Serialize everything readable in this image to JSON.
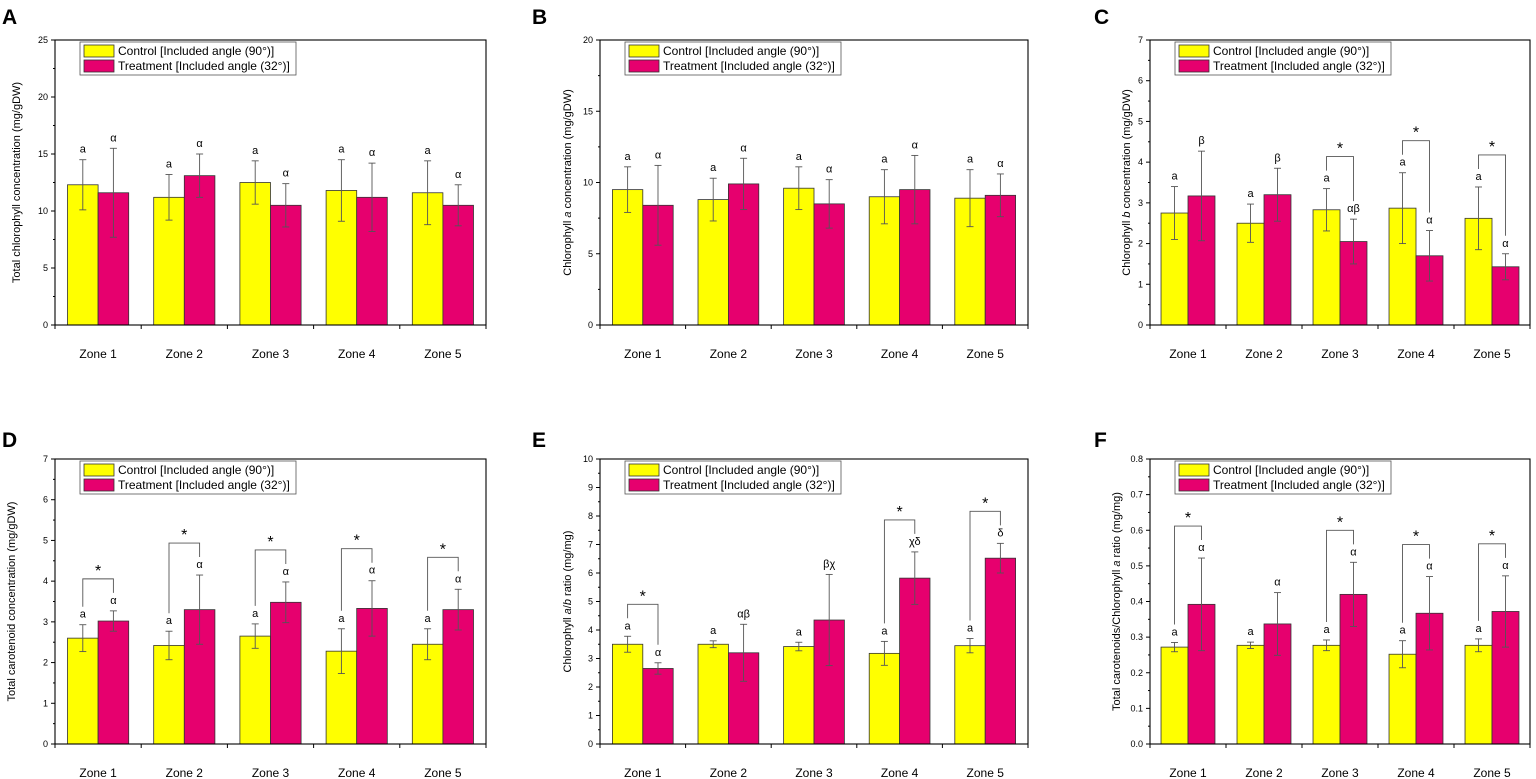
{
  "colors": {
    "control": "#ffff00",
    "treatment": "#e6006e",
    "axis": "#000000",
    "errorbar": "#555555"
  },
  "legend": {
    "control": "Control [Included angle (90°)]",
    "treatment": "Treatment [Included angle (32°)]"
  },
  "chart_data": [
    {
      "panel": "A",
      "type": "bar",
      "ylabel": "Total chlorophyll concentration (mg/gDW)",
      "categories": [
        "Zone 1",
        "Zone 2",
        "Zone 3",
        "Zone 4",
        "Zone 5"
      ],
      "ylim": [
        0,
        25
      ],
      "yticks": [
        "0",
        "5",
        "10",
        "15",
        "20",
        "25"
      ],
      "series": [
        {
          "name": "Control [Included angle (90°)]",
          "values": [
            12.3,
            11.2,
            12.5,
            11.8,
            11.6
          ],
          "errors": [
            2.2,
            2.0,
            1.9,
            2.7,
            2.8
          ],
          "labels": [
            "a",
            "a",
            "a",
            "a",
            "a"
          ]
        },
        {
          "name": "Treatment [Included angle (32°)]",
          "values": [
            11.6,
            13.1,
            10.5,
            11.2,
            10.5
          ],
          "errors": [
            3.9,
            1.9,
            1.9,
            3.0,
            1.8
          ],
          "labels": [
            "α",
            "α",
            "α",
            "α",
            "α"
          ]
        }
      ],
      "stars": []
    },
    {
      "panel": "B",
      "type": "bar",
      "ylabel": "Chlorophyll a concentration (mg/gDW)",
      "categories": [
        "Zone 1",
        "Zone 2",
        "Zone 3",
        "Zone 4",
        "Zone 5"
      ],
      "ylim": [
        0,
        20
      ],
      "yticks": [
        "0",
        "5",
        "10",
        "15",
        "20"
      ],
      "series": [
        {
          "name": "Control [Included angle (90°)]",
          "values": [
            9.5,
            8.8,
            9.6,
            9.0,
            8.9
          ],
          "errors": [
            1.6,
            1.5,
            1.5,
            1.9,
            2.0
          ],
          "labels": [
            "a",
            "a",
            "a",
            "a",
            "a"
          ]
        },
        {
          "name": "Treatment [Included angle (32°)]",
          "values": [
            8.4,
            9.9,
            8.5,
            9.5,
            9.1
          ],
          "errors": [
            2.8,
            1.8,
            1.7,
            2.4,
            1.5
          ],
          "labels": [
            "α",
            "α",
            "α",
            "α",
            "α"
          ]
        }
      ],
      "stars": []
    },
    {
      "panel": "C",
      "type": "bar",
      "ylabel": "Chlorophyll b concentration (mg/gDW)",
      "categories": [
        "Zone 1",
        "Zone 2",
        "Zone 3",
        "Zone 4",
        "Zone 5"
      ],
      "ylim": [
        0,
        7
      ],
      "yticks": [
        "0",
        "1",
        "2",
        "3",
        "4",
        "5",
        "6",
        "7"
      ],
      "series": [
        {
          "name": "Control [Included angle (90°)]",
          "values": [
            2.75,
            2.5,
            2.83,
            2.87,
            2.62
          ],
          "errors": [
            0.65,
            0.47,
            0.52,
            0.87,
            0.77
          ],
          "labels": [
            "a",
            "a",
            "a",
            "a",
            "a"
          ]
        },
        {
          "name": "Treatment [Included angle (32°)]",
          "values": [
            3.17,
            3.2,
            2.05,
            1.7,
            1.43
          ],
          "errors": [
            1.1,
            0.65,
            0.55,
            0.62,
            0.32
          ],
          "labels": [
            "β",
            "β",
            "αβ",
            "α",
            "α"
          ]
        }
      ],
      "stars": [
        2,
        3,
        4
      ]
    },
    {
      "panel": "D",
      "type": "bar",
      "ylabel": "Total carotenoid concentration (mg/gDW)",
      "categories": [
        "Zone 1",
        "Zone 2",
        "Zone 3",
        "Zone 4",
        "Zone 5"
      ],
      "ylim": [
        0,
        7
      ],
      "yticks": [
        "0",
        "1",
        "2",
        "3",
        "4",
        "5",
        "6",
        "7"
      ],
      "series": [
        {
          "name": "Control [Included angle (90°)]",
          "values": [
            2.6,
            2.42,
            2.65,
            2.28,
            2.45
          ],
          "errors": [
            0.33,
            0.35,
            0.3,
            0.55,
            0.38
          ],
          "labels": [
            "a",
            "a",
            "a",
            "a",
            "a"
          ]
        },
        {
          "name": "Treatment [Included angle (32°)]",
          "values": [
            3.02,
            3.3,
            3.48,
            3.33,
            3.3
          ],
          "errors": [
            0.25,
            0.85,
            0.5,
            0.68,
            0.5
          ],
          "labels": [
            "α",
            "α",
            "α",
            "α",
            "α"
          ]
        }
      ],
      "stars": [
        0,
        1,
        2,
        3,
        4
      ]
    },
    {
      "panel": "E",
      "type": "bar",
      "ylabel": "Chlorophyll a/b ratio (mg/mg)",
      "categories": [
        "Zone 1",
        "Zone 2",
        "Zone 3",
        "Zone 4",
        "Zone 5"
      ],
      "ylim": [
        0,
        10
      ],
      "yticks": [
        "0",
        "1",
        "2",
        "3",
        "4",
        "5",
        "6",
        "7",
        "8",
        "9",
        "10"
      ],
      "series": [
        {
          "name": "Control [Included angle (90°)]",
          "values": [
            3.5,
            3.5,
            3.42,
            3.18,
            3.45
          ],
          "errors": [
            0.28,
            0.12,
            0.15,
            0.42,
            0.25
          ],
          "labels": [
            "a",
            "a",
            "a",
            "a",
            "a"
          ]
        },
        {
          "name": "Treatment [Included angle (32°)]",
          "values": [
            2.65,
            3.2,
            4.35,
            5.82,
            6.52
          ],
          "errors": [
            0.2,
            1.0,
            1.6,
            0.92,
            0.52
          ],
          "labels": [
            "α",
            "αβ",
            "βχ",
            "χδ",
            "δ"
          ]
        }
      ],
      "stars": [
        0,
        3,
        4
      ]
    },
    {
      "panel": "F",
      "type": "bar",
      "ylabel": "Total carotenoids/Chlorophyll a ratio (mg/mg)",
      "categories": [
        "Zone 1",
        "Zone 2",
        "Zone 3",
        "Zone 4",
        "Zone 5"
      ],
      "ylim": [
        0,
        0.8
      ],
      "yticks": [
        "0.0",
        "0.1",
        "0.2",
        "0.3",
        "0.4",
        "0.5",
        "0.6",
        "0.7",
        "0.8"
      ],
      "series": [
        {
          "name": "Control [Included angle (90°)]",
          "values": [
            0.272,
            0.277,
            0.277,
            0.252,
            0.277
          ],
          "errors": [
            0.013,
            0.009,
            0.015,
            0.038,
            0.018
          ],
          "labels": [
            "a",
            "a",
            "a",
            "a",
            "a"
          ]
        },
        {
          "name": "Treatment [Included angle (32°)]",
          "values": [
            0.392,
            0.337,
            0.42,
            0.367,
            0.372
          ],
          "errors": [
            0.13,
            0.088,
            0.09,
            0.103,
            0.1
          ],
          "labels": [
            "α",
            "α",
            "α",
            "α",
            "α"
          ]
        }
      ],
      "stars": [
        0,
        2,
        3,
        4
      ]
    }
  ]
}
